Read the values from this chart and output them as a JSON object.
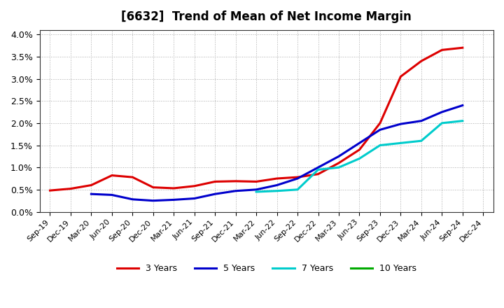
{
  "title": "[6632]  Trend of Mean of Net Income Margin",
  "background_color": "#ffffff",
  "grid_color": "#aaaaaa",
  "ylim": [
    0.0,
    0.041
  ],
  "yticks": [
    0.0,
    0.005,
    0.01,
    0.015,
    0.02,
    0.025,
    0.03,
    0.035,
    0.04
  ],
  "x_labels": [
    "Sep-19",
    "Dec-19",
    "Mar-20",
    "Jun-20",
    "Sep-20",
    "Dec-20",
    "Mar-21",
    "Jun-21",
    "Sep-21",
    "Dec-21",
    "Mar-22",
    "Jun-22",
    "Sep-22",
    "Dec-22",
    "Mar-23",
    "Jun-23",
    "Sep-23",
    "Dec-23",
    "Mar-24",
    "Jun-24",
    "Sep-24",
    "Dec-24"
  ],
  "series": {
    "3 Years": {
      "color": "#dd0000",
      "linewidth": 2.2,
      "data_x": [
        0,
        1,
        2,
        3,
        4,
        5,
        6,
        7,
        8,
        9,
        10,
        11,
        12,
        13,
        14,
        15,
        16,
        17,
        18,
        19,
        20
      ],
      "data_y": [
        0.0048,
        0.0052,
        0.006,
        0.0082,
        0.0078,
        0.0055,
        0.0053,
        0.0058,
        0.0068,
        0.0069,
        0.0068,
        0.0075,
        0.0078,
        0.0085,
        0.011,
        0.014,
        0.02,
        0.0305,
        0.034,
        0.0365,
        0.037
      ]
    },
    "5 Years": {
      "color": "#0000cc",
      "linewidth": 2.2,
      "data_x": [
        0,
        1,
        2,
        3,
        4,
        5,
        6,
        7,
        8,
        9,
        10,
        11,
        12,
        13,
        14,
        15,
        16,
        17,
        18,
        19,
        20
      ],
      "data_y": [
        null,
        null,
        0.004,
        0.0038,
        0.0028,
        0.0025,
        0.0027,
        0.003,
        0.004,
        0.0047,
        0.005,
        0.006,
        0.0075,
        0.01,
        0.0125,
        0.0155,
        0.0185,
        0.0198,
        0.0205,
        0.0225,
        0.024
      ]
    },
    "7 Years": {
      "color": "#00cccc",
      "linewidth": 2.2,
      "data_x": [
        10,
        11,
        12,
        13,
        14,
        15,
        16,
        17,
        18,
        19,
        20
      ],
      "data_y": [
        0.0045,
        0.0047,
        0.005,
        0.0095,
        0.01,
        0.012,
        0.015,
        0.0155,
        0.016,
        0.02,
        0.0205
      ]
    },
    "10 Years": {
      "color": "#00aa00",
      "linewidth": 2.2,
      "data_x": [],
      "data_y": []
    }
  },
  "legend_labels": [
    "3 Years",
    "5 Years",
    "7 Years",
    "10 Years"
  ],
  "legend_colors": [
    "#dd0000",
    "#0000cc",
    "#00cccc",
    "#00aa00"
  ]
}
